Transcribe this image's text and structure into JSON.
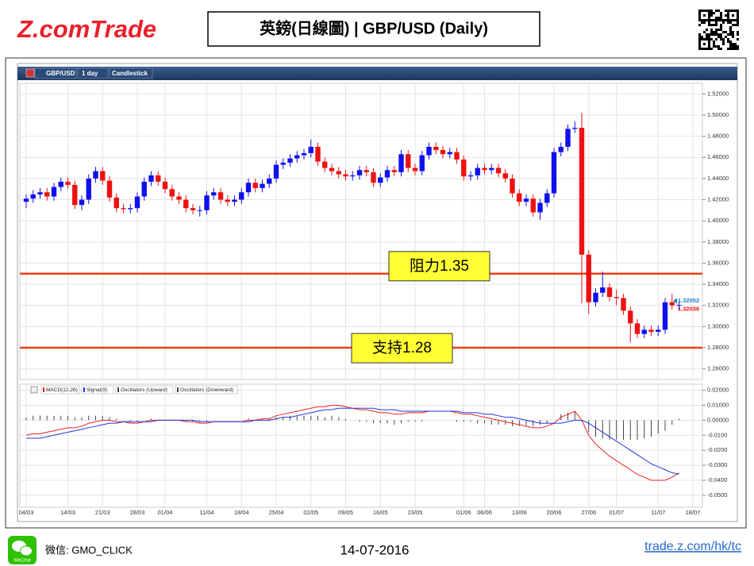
{
  "header": {
    "logo": "Z.comTrade",
    "title": "英鎊(日線圖) | GBP/USD  (Daily)"
  },
  "toolbar": [
    "GBP/USD",
    "1 day",
    "Candlestick"
  ],
  "chart_data": [
    {
      "type": "candlestick",
      "categories": [
        "04/03",
        null,
        null,
        null,
        null,
        null,
        "14/03",
        null,
        null,
        null,
        null,
        "21/03",
        null,
        null,
        null,
        null,
        "28/03",
        null,
        null,
        null,
        "01/04",
        null,
        null,
        null,
        null,
        null,
        "11/04",
        null,
        null,
        null,
        null,
        "18/04",
        null,
        null,
        null,
        null,
        "25/04",
        null,
        null,
        null,
        null,
        "02/05",
        null,
        null,
        null,
        null,
        "09/05",
        null,
        null,
        null,
        null,
        "16/05",
        null,
        null,
        null,
        null,
        "23/05",
        null,
        null,
        null,
        null,
        null,
        null,
        "01/06",
        null,
        null,
        "06/06",
        null,
        null,
        null,
        null,
        "13/06",
        null,
        null,
        null,
        null,
        "20/06",
        null,
        null,
        null,
        null,
        "27/06",
        null,
        null,
        null,
        "01/07",
        null,
        null,
        null,
        null,
        null,
        "11/07",
        null,
        null,
        null,
        null,
        "18/07"
      ],
      "open": [
        1.418,
        1.421,
        1.425,
        1.427,
        1.423,
        1.432,
        1.437,
        1.434,
        1.415,
        1.42,
        1.44,
        1.447,
        1.438,
        1.422,
        1.412,
        1.411,
        1.412,
        1.423,
        1.437,
        1.443,
        1.437,
        1.43,
        1.423,
        1.42,
        1.412,
        1.41,
        1.41,
        1.424,
        1.427,
        1.42,
        1.418,
        1.42,
        1.427,
        1.436,
        1.431,
        1.435,
        1.44,
        1.453,
        1.455,
        1.459,
        1.462,
        1.464,
        1.47,
        1.456,
        1.45,
        1.447,
        1.444,
        1.442,
        1.443,
        1.448,
        1.446,
        1.436,
        1.441,
        1.448,
        1.446,
        1.463,
        1.45,
        1.447,
        1.462,
        1.47,
        1.467,
        1.463,
        1.465,
        1.458,
        1.442,
        1.443,
        1.45,
        1.448,
        1.45,
        1.445,
        1.44,
        1.426,
        1.418,
        1.421,
        1.408,
        1.417,
        1.426,
        1.465,
        1.47,
        1.487,
        1.488,
        1.368,
        1.323,
        1.332,
        1.337,
        1.328,
        1.327,
        1.315,
        1.303,
        1.293,
        1.297,
        1.295,
        1.297,
        1.323,
        1.32,
        null,
        null
      ],
      "high": [
        1.425,
        1.429,
        1.431,
        1.431,
        1.436,
        1.441,
        1.441,
        1.438,
        1.424,
        1.444,
        1.451,
        1.451,
        1.442,
        1.426,
        1.416,
        1.416,
        1.427,
        1.441,
        1.447,
        1.447,
        1.441,
        1.434,
        1.427,
        1.424,
        1.416,
        1.414,
        1.428,
        1.431,
        1.431,
        1.424,
        1.424,
        1.431,
        1.44,
        1.44,
        1.439,
        1.444,
        1.457,
        1.459,
        1.463,
        1.466,
        1.468,
        1.477,
        1.474,
        1.46,
        1.454,
        1.451,
        1.448,
        1.447,
        1.452,
        1.452,
        1.45,
        1.445,
        1.452,
        1.452,
        1.467,
        1.467,
        1.454,
        1.466,
        1.474,
        1.474,
        1.471,
        1.469,
        1.469,
        1.462,
        1.447,
        1.454,
        1.454,
        1.454,
        1.454,
        1.449,
        1.444,
        1.43,
        1.425,
        1.425,
        1.421,
        1.43,
        1.469,
        1.474,
        1.491,
        1.494,
        1.502,
        1.372,
        1.336,
        1.352,
        1.341,
        1.335,
        1.331,
        1.319,
        1.307,
        1.301,
        1.301,
        1.301,
        1.327,
        1.331,
        1.324,
        null,
        null
      ],
      "low": [
        1.412,
        1.417,
        1.421,
        1.419,
        1.419,
        1.428,
        1.43,
        1.411,
        1.41,
        1.416,
        1.436,
        1.434,
        1.418,
        1.408,
        1.407,
        1.407,
        1.408,
        1.419,
        1.433,
        1.433,
        1.426,
        1.419,
        1.416,
        1.408,
        1.406,
        1.404,
        1.406,
        1.42,
        1.416,
        1.414,
        1.414,
        1.416,
        1.423,
        1.427,
        1.427,
        1.431,
        1.436,
        1.449,
        1.451,
        1.455,
        1.458,
        1.46,
        1.452,
        1.446,
        1.443,
        1.44,
        1.438,
        1.438,
        1.439,
        1.442,
        1.432,
        1.432,
        1.437,
        1.442,
        1.442,
        1.446,
        1.443,
        1.443,
        1.458,
        1.463,
        1.459,
        1.459,
        1.454,
        1.438,
        1.438,
        1.439,
        1.444,
        1.444,
        1.441,
        1.436,
        1.422,
        1.414,
        1.414,
        1.404,
        1.401,
        1.413,
        1.422,
        1.461,
        1.466,
        1.483,
        1.322,
        1.312,
        1.319,
        1.328,
        1.324,
        1.32,
        1.311,
        1.285,
        1.289,
        1.289,
        1.291,
        1.291,
        1.293,
        1.316,
        1.316,
        null,
        null
      ],
      "close": [
        1.421,
        1.425,
        1.427,
        1.423,
        1.432,
        1.437,
        1.434,
        1.415,
        1.42,
        1.44,
        1.447,
        1.438,
        1.422,
        1.412,
        1.411,
        1.412,
        1.423,
        1.437,
        1.443,
        1.437,
        1.43,
        1.423,
        1.42,
        1.412,
        1.41,
        1.41,
        1.424,
        1.427,
        1.42,
        1.418,
        1.42,
        1.427,
        1.436,
        1.431,
        1.435,
        1.44,
        1.453,
        1.455,
        1.459,
        1.462,
        1.464,
        1.47,
        1.456,
        1.45,
        1.447,
        1.444,
        1.442,
        1.443,
        1.448,
        1.446,
        1.436,
        1.441,
        1.448,
        1.446,
        1.463,
        1.45,
        1.447,
        1.462,
        1.47,
        1.467,
        1.463,
        1.465,
        1.458,
        1.442,
        1.443,
        1.45,
        1.448,
        1.45,
        1.445,
        1.44,
        1.426,
        1.418,
        1.421,
        1.408,
        1.417,
        1.426,
        1.465,
        1.47,
        1.487,
        1.488,
        1.368,
        1.323,
        1.332,
        1.337,
        1.328,
        1.327,
        1.315,
        1.303,
        1.293,
        1.297,
        1.295,
        1.297,
        1.323,
        1.32,
        1.3205,
        null,
        null
      ],
      "up_color": "#1010ee",
      "down_color": "#ee1111",
      "ylim": [
        1.25,
        1.53
      ],
      "yticks": [
        {
          "value": 1.52,
          "label": "1.52000"
        },
        {
          "value": 1.5,
          "label": "1.50000"
        },
        {
          "value": 1.48,
          "label": "1.48000"
        },
        {
          "value": 1.46,
          "label": "1.46000"
        },
        {
          "value": 1.44,
          "label": "1.44000"
        },
        {
          "value": 1.42,
          "label": "1.42000"
        },
        {
          "value": 1.4,
          "label": "1.40000"
        },
        {
          "value": 1.38,
          "label": "1.38000"
        },
        {
          "value": 1.36,
          "label": "1.36000"
        },
        {
          "value": 1.34,
          "label": "1.34000"
        },
        {
          "value": 1.32,
          "label": "1.32000"
        },
        {
          "value": 1.3,
          "label": "1.30000"
        },
        {
          "value": 1.28,
          "label": "1.28000"
        },
        {
          "value": 1.26,
          "label": "1.26000"
        }
      ],
      "grid": true,
      "reference_lines": [
        {
          "value": 1.35,
          "label": "阻力1.35"
        },
        {
          "value": 1.28,
          "label": "支持1.28"
        }
      ],
      "reference_color": "#e8401a",
      "last_prices": [
        1.32052,
        1.32036
      ],
      "last_price_colors": [
        "#2080c0",
        "#ee1111"
      ]
    },
    {
      "type": "line",
      "series": [
        {
          "name": "MACD(12,26)",
          "color": "#ee2222",
          "values": [
            -0.01,
            -0.009,
            -0.009,
            -0.008,
            -0.007,
            -0.006,
            -0.005,
            -0.005,
            -0.004,
            -0.002,
            -0.001,
            0.0,
            0.0,
            -0.001,
            -0.001,
            -0.002,
            -0.002,
            -0.001,
            0.0,
            0.0,
            0.0,
            0.0,
            0.0,
            -0.001,
            -0.001,
            -0.002,
            -0.002,
            -0.001,
            -0.001,
            -0.001,
            -0.001,
            -0.001,
            0.0,
            0.0,
            0.001,
            0.001,
            0.003,
            0.004,
            0.005,
            0.006,
            0.007,
            0.008,
            0.009,
            0.009,
            0.01,
            0.01,
            0.009,
            0.008,
            0.007,
            0.007,
            0.006,
            0.005,
            0.005,
            0.004,
            0.004,
            0.005,
            0.005,
            0.005,
            0.006,
            0.006,
            0.006,
            0.006,
            0.005,
            0.004,
            0.004,
            0.003,
            0.002,
            0.001,
            0.0,
            -0.001,
            -0.002,
            -0.003,
            -0.004,
            -0.005,
            -0.005,
            -0.004,
            -0.002,
            0.002,
            0.004,
            0.006,
            0.0,
            -0.01,
            -0.016,
            -0.02,
            -0.024,
            -0.027,
            -0.03,
            -0.033,
            -0.036,
            -0.038,
            -0.04,
            -0.04,
            -0.04,
            -0.038,
            -0.035,
            null,
            null
          ]
        },
        {
          "name": "Signal(9)",
          "color": "#2233dd",
          "values": [
            -0.012,
            -0.012,
            -0.012,
            -0.011,
            -0.01,
            -0.009,
            -0.008,
            -0.007,
            -0.006,
            -0.005,
            -0.004,
            -0.003,
            -0.002,
            -0.002,
            -0.001,
            -0.001,
            -0.001,
            -0.001,
            -0.001,
            0.0,
            0.0,
            0.0,
            0.0,
            0.0,
            0.0,
            -0.001,
            -0.001,
            -0.001,
            -0.001,
            -0.001,
            -0.001,
            -0.001,
            -0.001,
            0.0,
            0.0,
            0.0,
            0.001,
            0.002,
            0.002,
            0.003,
            0.004,
            0.005,
            0.006,
            0.007,
            0.007,
            0.008,
            0.008,
            0.008,
            0.008,
            0.008,
            0.008,
            0.007,
            0.007,
            0.007,
            0.006,
            0.006,
            0.006,
            0.006,
            0.006,
            0.006,
            0.006,
            0.006,
            0.006,
            0.005,
            0.005,
            0.005,
            0.004,
            0.004,
            0.003,
            0.002,
            0.002,
            0.001,
            0.0,
            -0.001,
            -0.002,
            -0.002,
            -0.002,
            -0.002,
            -0.001,
            0.0,
            0.0,
            -0.002,
            -0.005,
            -0.008,
            -0.011,
            -0.014,
            -0.017,
            -0.02,
            -0.023,
            -0.026,
            -0.029,
            -0.031,
            -0.033,
            -0.035,
            -0.036,
            null,
            null
          ]
        }
      ],
      "oscillator": {
        "names": [
          "Oscillators (Upward)",
          "Oscillators (Downward)"
        ],
        "color": "#444444",
        "values": [
          0.002,
          0.003,
          0.003,
          0.003,
          0.003,
          0.003,
          0.003,
          0.002,
          0.002,
          0.003,
          0.003,
          0.003,
          0.002,
          0.001,
          0,
          -0.001,
          -0.001,
          0,
          0.001,
          0,
          0,
          0,
          0,
          -0.001,
          -0.001,
          -0.001,
          -0.001,
          0,
          0,
          0,
          0,
          0,
          0.001,
          0,
          0.001,
          0.001,
          0.002,
          0.002,
          0.003,
          0.003,
          0.003,
          0.003,
          0.003,
          0.002,
          0.003,
          0.002,
          0.001,
          0,
          -0.001,
          -0.001,
          -0.002,
          -0.002,
          -0.002,
          -0.003,
          -0.002,
          -0.001,
          -0.001,
          -0.001,
          0,
          0,
          0,
          0,
          -0.001,
          -0.001,
          -0.001,
          -0.002,
          -0.002,
          -0.003,
          -0.003,
          -0.003,
          -0.004,
          -0.004,
          -0.004,
          -0.004,
          -0.003,
          -0.002,
          0,
          0.004,
          0.005,
          0.006,
          0,
          -0.008,
          -0.011,
          -0.012,
          -0.013,
          -0.013,
          -0.013,
          -0.013,
          -0.013,
          -0.012,
          -0.011,
          -0.009,
          -0.007,
          -0.003,
          0.001,
          null,
          null
        ]
      },
      "ylim": [
        -0.058,
        0.024
      ],
      "yticks": [
        {
          "value": 0.02,
          "label": "0.02000"
        },
        {
          "value": 0.01,
          "label": "0.01000"
        },
        {
          "value": 0,
          "label": "0.00000"
        },
        {
          "value": -0.01,
          "label": "-0.0100"
        },
        {
          "value": -0.02,
          "label": "-0.0200"
        },
        {
          "value": -0.03,
          "label": "-0.0300"
        },
        {
          "value": -0.04,
          "label": "-0.0400"
        },
        {
          "value": -0.05,
          "label": "-0.0500"
        }
      ],
      "grid": true
    }
  ],
  "footer": {
    "wechat_icon": "WeChat",
    "wechat": "微信: GMO_CLICK",
    "date": "14-07-2016",
    "link": "trade.z.com/hk/tc"
  }
}
